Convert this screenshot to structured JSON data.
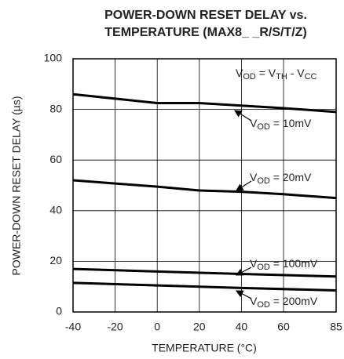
{
  "chart_data": {
    "type": "line",
    "title": [
      "POWER-DOWN RESET DELAY vs.",
      "TEMPERATURE (MAX8_ _R/S/T/Z)"
    ],
    "xlabel": "TEMPERATURE (°C)",
    "ylabel": "POWER-DOWN RESET DELAY (µs)",
    "xlim": [
      -40,
      85
    ],
    "ylim": [
      0,
      100
    ],
    "xticks": [
      -40,
      -20,
      0,
      20,
      40,
      60,
      85
    ],
    "yticks": [
      0,
      20,
      40,
      60,
      80,
      100
    ],
    "grid": true,
    "color": "#000000",
    "annotations": [
      {
        "parts": [
          "V",
          "OD",
          " = V",
          "TH",
          " - V",
          "CC"
        ]
      }
    ],
    "series": [
      {
        "name": [
          "V",
          "OD",
          " = 10mV"
        ],
        "x": [
          -40,
          0,
          20,
          60,
          85
        ],
        "values": [
          86,
          82.5,
          82.5,
          80.5,
          79
        ]
      },
      {
        "name": [
          "V",
          "OD",
          " = 20mV"
        ],
        "x": [
          -40,
          0,
          20,
          40,
          60,
          85
        ],
        "values": [
          52,
          49.5,
          48,
          47.5,
          46.5,
          45
        ]
      },
      {
        "name": [
          "V",
          "OD",
          " = 100mV"
        ],
        "x": [
          -40,
          0,
          40,
          85
        ],
        "values": [
          17,
          16,
          15,
          14
        ]
      },
      {
        "name": [
          "V",
          "OD",
          " = 200mV"
        ],
        "x": [
          -40,
          0,
          40,
          85
        ],
        "values": [
          11.5,
          10.5,
          9.5,
          8.5
        ]
      }
    ]
  }
}
